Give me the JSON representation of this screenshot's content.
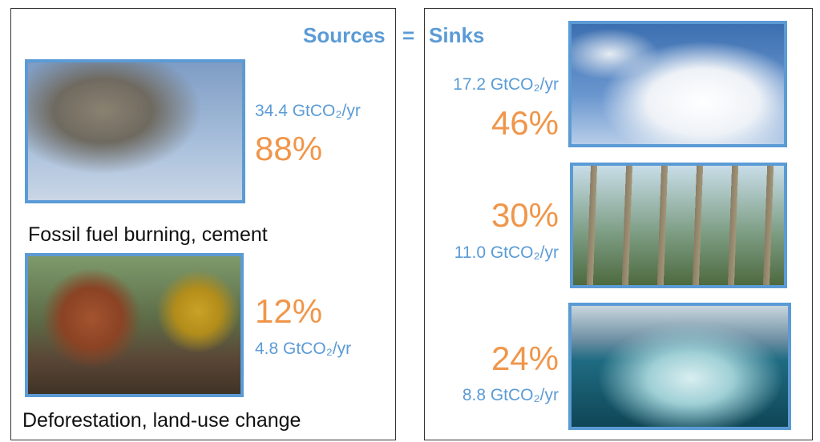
{
  "header": {
    "sources": "Sources",
    "equals": "=",
    "sinks": "Sinks"
  },
  "sources": [
    {
      "amount": "34.4 GtCO₂/yr",
      "share": "88%",
      "label": "Fossil fuel burning, cement"
    },
    {
      "share": "12%",
      "amount": "4.8 GtCO₂/yr",
      "label": "Deforestation, land-use change"
    }
  ],
  "sinks": [
    {
      "amount": "17.2 GtCO₂/yr",
      "share": "46%"
    },
    {
      "share": "30%",
      "amount": "11.0 GtCO₂/yr"
    },
    {
      "share": "24%",
      "amount": "8.8 GtCO₂/yr"
    }
  ]
}
